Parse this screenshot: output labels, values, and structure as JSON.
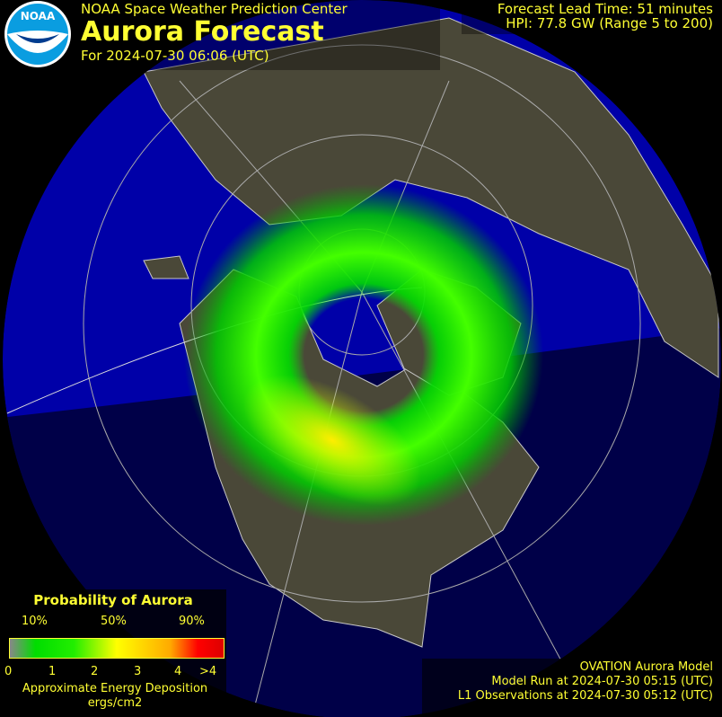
{
  "header": {
    "organization": "NOAA Space Weather Prediction Center",
    "title": "Aurora Forecast",
    "forecast_for": "For 2024-07-30 06:06 (UTC)",
    "logo_text": "NOAA"
  },
  "status": {
    "lead_time": "Forecast Lead Time:  51 minutes",
    "hpi": "HPI:  77.8 GW (Range 5 to 200)"
  },
  "legend": {
    "title": "Probability of Aurora",
    "percent_labels": [
      "10%",
      "50%",
      "90%"
    ],
    "scale_ticks": [
      "0",
      "1",
      "2",
      "3",
      "4",
      ">4"
    ],
    "energy_label": "Approximate Energy Deposition",
    "unit_label": "ergs/cm2",
    "colors": [
      "#888888",
      "#00dd00",
      "#ffff00",
      "#ffaa00",
      "#ff0000"
    ]
  },
  "footer": {
    "model": "OVATION Aurora Model",
    "model_run": "Model Run at 2024-07-30 05:15 (UTC)",
    "l1_obs": "L1 Observations at 2024-07-30 05:12 (UTC)"
  },
  "colors": {
    "text": "#ffff33",
    "ocean_day": "#0000a8",
    "ocean_night": "#000048",
    "land": "#4a4838"
  }
}
